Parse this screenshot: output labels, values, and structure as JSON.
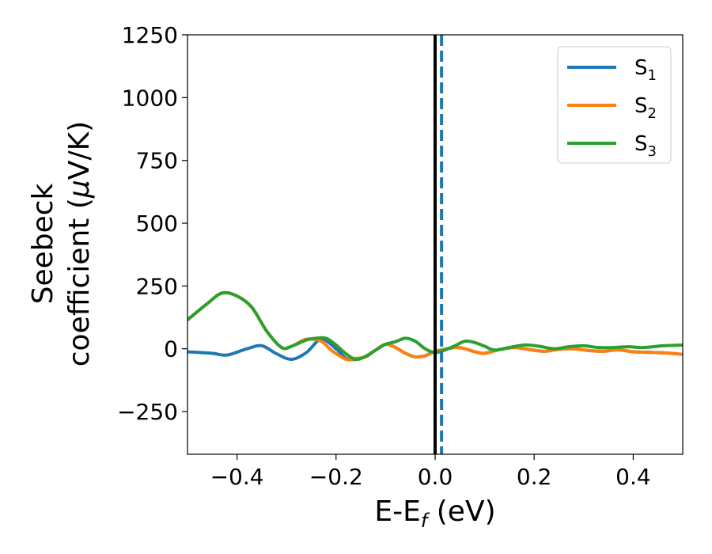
{
  "chart_data": {
    "type": "line",
    "title": "",
    "xlabel": "E-E",
    "xlabel_sub": "f",
    "xlabel_unit": " (eV)",
    "ylabel_line1": "Seebeck",
    "ylabel_line2": "coefficient  (",
    "ylabel_mu": "μ",
    "ylabel_unit": "V/K)",
    "xlim": [
      -0.5,
      0.5
    ],
    "ylim": [
      -420,
      1250
    ],
    "xticks": [
      -0.4,
      -0.2,
      0.0,
      0.2,
      0.4
    ],
    "xtick_labels": [
      "−0.4",
      "−0.2",
      "0.0",
      "0.2",
      "0.4"
    ],
    "yticks": [
      -250,
      0,
      250,
      500,
      750,
      1000,
      1250
    ],
    "ytick_labels": [
      "−250",
      "0",
      "250",
      "500",
      "750",
      "1000",
      "1250"
    ],
    "grid": false,
    "legend_position": "top-right",
    "vlines": [
      {
        "x": 0.0,
        "style": "solid",
        "color": "#000000"
      },
      {
        "x": 0.013,
        "style": "dashed",
        "color": "#1f77b4"
      }
    ],
    "series": [
      {
        "name": "S",
        "subscript": "1",
        "color": "#1f77b4",
        "x": [
          -0.5,
          -0.45,
          -0.42,
          -0.38,
          -0.35,
          -0.32,
          -0.29,
          -0.26,
          -0.23,
          -0.2,
          -0.18,
          -0.16,
          -0.14,
          -0.12,
          -0.1,
          -0.08,
          -0.06,
          -0.04,
          -0.02,
          0.0,
          0.04,
          0.06,
          0.08,
          0.1,
          0.13,
          0.16,
          0.19,
          0.22,
          0.25,
          0.28,
          0.31,
          0.34,
          0.37,
          0.4,
          0.43,
          0.46,
          0.5
        ],
        "y": [
          -12,
          -18,
          -25,
          0,
          12,
          -20,
          -42,
          -15,
          38,
          0,
          -38,
          -42,
          -30,
          -5,
          18,
          5,
          -18,
          -32,
          -28,
          -10,
          5,
          0,
          -12,
          -18,
          -3,
          5,
          -3,
          -10,
          -2,
          0,
          -7,
          -10,
          -4,
          -12,
          -14,
          -16,
          -22
        ]
      },
      {
        "name": "S",
        "subscript": "2",
        "color": "#ff7f0e",
        "x": [
          -0.5,
          -0.46,
          -0.43,
          -0.4,
          -0.37,
          -0.34,
          -0.31,
          -0.29,
          -0.26,
          -0.23,
          -0.21,
          -0.18,
          -0.16,
          -0.14,
          -0.12,
          -0.1,
          -0.08,
          -0.06,
          -0.04,
          -0.02,
          0.0,
          0.04,
          0.06,
          0.08,
          0.1,
          0.13,
          0.16,
          0.19,
          0.22,
          0.25,
          0.28,
          0.31,
          0.34,
          0.37,
          0.4,
          0.43,
          0.46,
          0.5
        ],
        "y": [
          115,
          180,
          222,
          210,
          165,
          70,
          5,
          10,
          38,
          30,
          -5,
          -42,
          -38,
          -32,
          -5,
          18,
          5,
          -18,
          -32,
          -28,
          -12,
          5,
          0,
          -12,
          -18,
          -3,
          5,
          -3,
          -10,
          -2,
          0,
          -7,
          -10,
          -4,
          -12,
          -14,
          -16,
          -22
        ]
      },
      {
        "name": "S",
        "subscript": "3",
        "color": "#2ca02c",
        "x": [
          -0.5,
          -0.46,
          -0.43,
          -0.4,
          -0.37,
          -0.34,
          -0.31,
          -0.29,
          -0.26,
          -0.24,
          -0.22,
          -0.2,
          -0.18,
          -0.16,
          -0.14,
          -0.12,
          -0.1,
          -0.08,
          -0.06,
          -0.04,
          -0.02,
          0.0,
          0.02,
          0.04,
          0.06,
          0.08,
          0.1,
          0.12,
          0.15,
          0.18,
          0.21,
          0.24,
          0.27,
          0.3,
          0.33,
          0.36,
          0.39,
          0.42,
          0.46,
          0.5
        ],
        "y": [
          115,
          180,
          222,
          210,
          165,
          70,
          5,
          10,
          35,
          42,
          42,
          15,
          -20,
          -42,
          -30,
          -5,
          18,
          28,
          42,
          30,
          0,
          -15,
          -5,
          12,
          30,
          25,
          10,
          -5,
          5,
          15,
          10,
          0,
          8,
          12,
          5,
          5,
          8,
          5,
          12,
          15
        ]
      }
    ]
  }
}
